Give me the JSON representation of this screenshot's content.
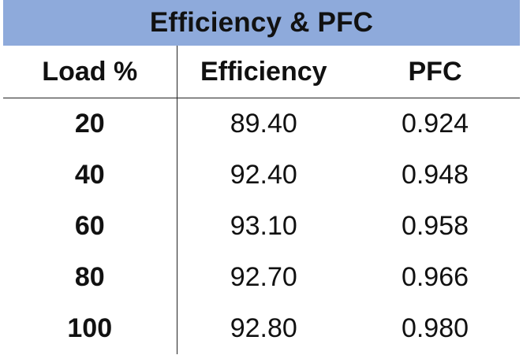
{
  "title": "Efficiency & PFC",
  "title_bg": "#8eaadb",
  "headers": [
    "Load %",
    "Efficiency",
    "PFC"
  ],
  "rows": [
    {
      "load": "20",
      "efficiency": "89.40",
      "pfc": "0.924"
    },
    {
      "load": "40",
      "efficiency": "92.40",
      "pfc": "0.948"
    },
    {
      "load": "60",
      "efficiency": "93.10",
      "pfc": "0.958"
    },
    {
      "load": "80",
      "efficiency": "92.70",
      "pfc": "0.966"
    },
    {
      "load": "100",
      "efficiency": "92.80",
      "pfc": "0.980"
    }
  ],
  "chart_data": {
    "type": "table",
    "title": "Efficiency & PFC",
    "columns": [
      "Load %",
      "Efficiency",
      "PFC"
    ],
    "x": [
      20,
      40,
      60,
      80,
      100
    ],
    "series": [
      {
        "name": "Efficiency",
        "values": [
          89.4,
          92.4,
          93.1,
          92.7,
          92.8
        ]
      },
      {
        "name": "PFC",
        "values": [
          0.924,
          0.948,
          0.958,
          0.966,
          0.98
        ]
      }
    ]
  }
}
